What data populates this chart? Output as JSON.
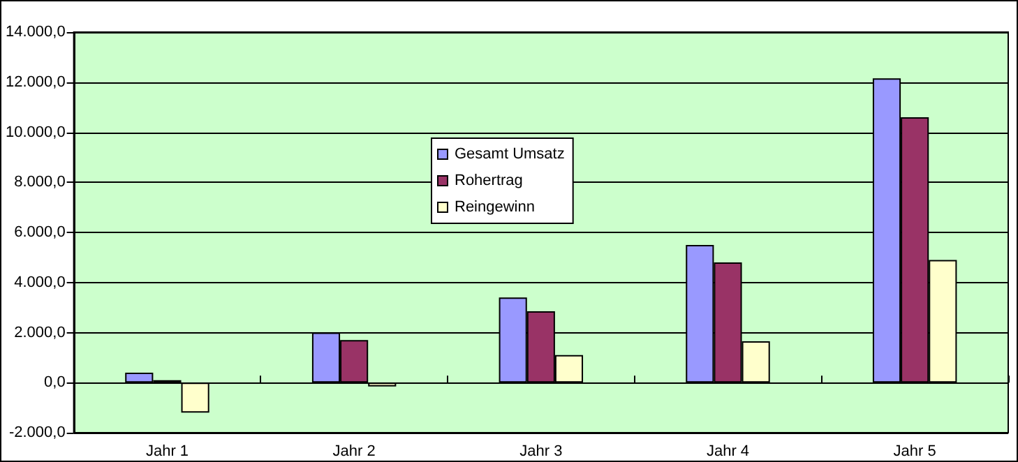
{
  "chart_data": {
    "type": "bar",
    "categories": [
      "Jahr 1",
      "Jahr 2",
      "Jahr 3",
      "Jahr 4",
      "Jahr 5"
    ],
    "series": [
      {
        "name": "Gesamt Umsatz",
        "color": "#9999ff",
        "values": [
          400,
          2000,
          3400,
          5500,
          12150
        ]
      },
      {
        "name": "Rohertrag",
        "color": "#993366",
        "values": [
          100,
          1700,
          2850,
          4800,
          10600
        ]
      },
      {
        "name": "Reingewinn",
        "color": "#ffffcc",
        "values": [
          -1200,
          -150,
          1100,
          1650,
          4900
        ]
      }
    ],
    "ylim": [
      -2000,
      14000
    ],
    "yticks": [
      {
        "value": -2000,
        "label": "-2.000,0"
      },
      {
        "value": 0,
        "label": "0,0"
      },
      {
        "value": 2000,
        "label": "2.000,0"
      },
      {
        "value": 4000,
        "label": "4.000,0"
      },
      {
        "value": 6000,
        "label": "6.000,0"
      },
      {
        "value": 8000,
        "label": "8.000,0"
      },
      {
        "value": 10000,
        "label": "10.000,0"
      },
      {
        "value": 12000,
        "label": "12.000,0"
      },
      {
        "value": 14000,
        "label": "14.000,0"
      }
    ],
    "grid": "y",
    "legend": "top"
  }
}
